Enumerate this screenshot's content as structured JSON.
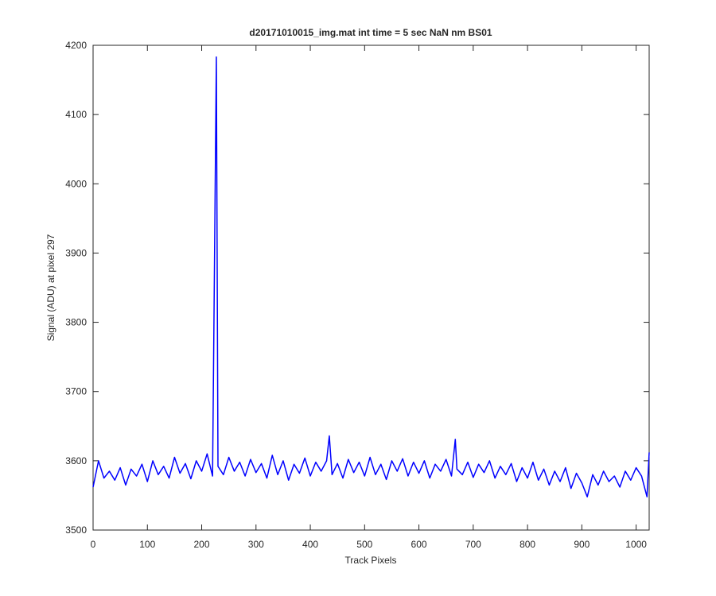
{
  "chart_data": {
    "type": "line",
    "title": "d20171010015_img.mat int time = 5 sec  NaN nm BS01",
    "x_label": "Track Pixels",
    "y_label": "Signal (ADU) at pixel 297",
    "xlim": [
      0,
      1024
    ],
    "ylim": [
      3500,
      4200
    ],
    "xticks": [
      0,
      100,
      200,
      300,
      400,
      500,
      600,
      700,
      800,
      900,
      1000
    ],
    "yticks": [
      3500,
      3600,
      3700,
      3800,
      3900,
      4000,
      4100,
      4200
    ],
    "grid": false,
    "series": [
      {
        "color": "#0000ff",
        "x": [
          0,
          10,
          20,
          30,
          40,
          50,
          60,
          70,
          80,
          90,
          100,
          110,
          120,
          130,
          140,
          150,
          160,
          170,
          180,
          190,
          200,
          210,
          220,
          227,
          230,
          240,
          250,
          260,
          270,
          280,
          290,
          300,
          310,
          320,
          330,
          340,
          350,
          360,
          370,
          380,
          390,
          400,
          410,
          420,
          430,
          435,
          440,
          450,
          460,
          470,
          480,
          490,
          500,
          510,
          520,
          530,
          540,
          550,
          560,
          570,
          580,
          590,
          600,
          610,
          620,
          630,
          640,
          650,
          660,
          667,
          670,
          680,
          690,
          700,
          710,
          720,
          730,
          740,
          750,
          760,
          770,
          780,
          790,
          800,
          810,
          820,
          830,
          840,
          850,
          860,
          870,
          880,
          890,
          900,
          910,
          920,
          930,
          940,
          950,
          960,
          970,
          980,
          990,
          1000,
          1010,
          1020,
          1024
        ],
        "values": [
          3562,
          3600,
          3575,
          3585,
          3572,
          3590,
          3565,
          3588,
          3578,
          3595,
          3570,
          3600,
          3580,
          3592,
          3575,
          3605,
          3582,
          3596,
          3574,
          3600,
          3585,
          3610,
          3578,
          4183,
          3592,
          3580,
          3605,
          3585,
          3598,
          3578,
          3602,
          3583,
          3596,
          3575,
          3608,
          3580,
          3600,
          3572,
          3595,
          3582,
          3604,
          3578,
          3598,
          3585,
          3600,
          3636,
          3580,
          3596,
          3575,
          3602,
          3583,
          3598,
          3578,
          3605,
          3580,
          3595,
          3573,
          3600,
          3585,
          3603,
          3578,
          3598,
          3582,
          3600,
          3575,
          3595,
          3585,
          3602,
          3578,
          3631,
          3588,
          3580,
          3598,
          3576,
          3595,
          3583,
          3600,
          3575,
          3592,
          3580,
          3596,
          3570,
          3590,
          3575,
          3598,
          3572,
          3588,
          3565,
          3585,
          3570,
          3590,
          3560,
          3582,
          3568,
          3548,
          3580,
          3565,
          3585,
          3570,
          3578,
          3562,
          3585,
          3572,
          3590,
          3578,
          3548,
          3612
        ]
      }
    ]
  }
}
